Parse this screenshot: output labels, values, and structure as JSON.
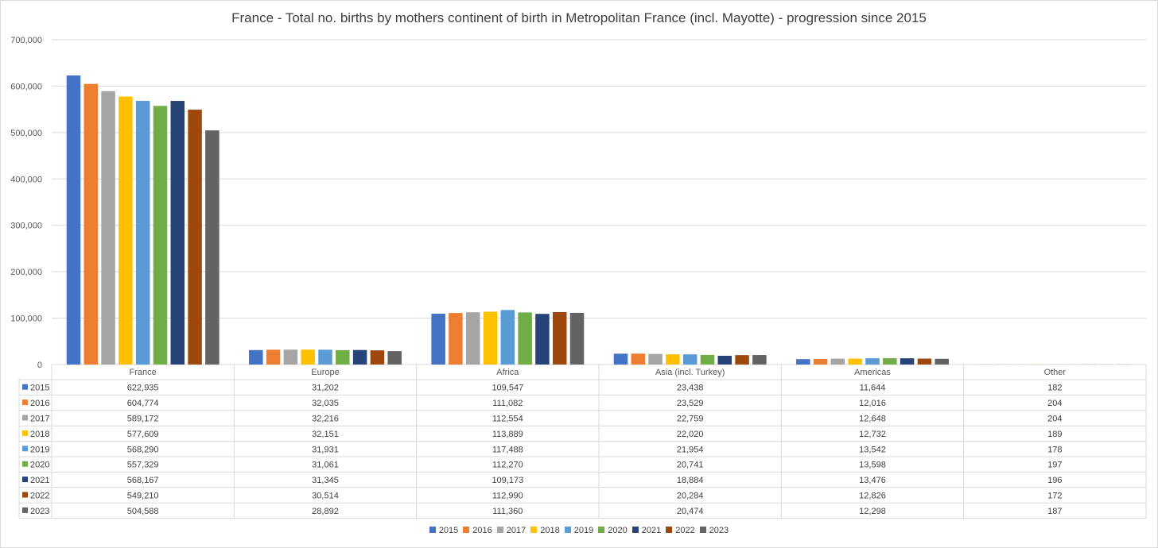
{
  "chart_data": {
    "type": "bar",
    "title": "France - Total no. births by mothers continent of birth in Metropolitan France (incl. Mayotte) - progression since 2015",
    "categories": [
      "France",
      "Europe",
      "Africa",
      "Asia (incl. Turkey)",
      "Americas",
      "Other"
    ],
    "ylim": [
      0,
      700000
    ],
    "yticks": [
      "0",
      "100,000",
      "200,000",
      "300,000",
      "400,000",
      "500,000",
      "600,000",
      "700,000"
    ],
    "grid": true,
    "legend_position": "bottom",
    "series": [
      {
        "name": "2015",
        "color": "#4472c4",
        "values": [
          622935,
          31202,
          109547,
          23438,
          11644,
          182
        ],
        "labels": [
          "622,935",
          "31,202",
          "109,547",
          "23,438",
          "11,644",
          "182"
        ]
      },
      {
        "name": "2016",
        "color": "#ed7d31",
        "values": [
          604774,
          32035,
          111082,
          23529,
          12016,
          204
        ],
        "labels": [
          "604,774",
          "32,035",
          "111,082",
          "23,529",
          "12,016",
          "204"
        ]
      },
      {
        "name": "2017",
        "color": "#a5a5a5",
        "values": [
          589172,
          32216,
          112554,
          22759,
          12648,
          204
        ],
        "labels": [
          "589,172",
          "32,216",
          "112,554",
          "22,759",
          "12,648",
          "204"
        ]
      },
      {
        "name": "2018",
        "color": "#ffc000",
        "values": [
          577609,
          32151,
          113889,
          22020,
          12732,
          189
        ],
        "labels": [
          "577,609",
          "32,151",
          "113,889",
          "22,020",
          "12,732",
          "189"
        ]
      },
      {
        "name": "2019",
        "color": "#5b9bd5",
        "values": [
          568290,
          31931,
          117488,
          21954,
          13542,
          178
        ],
        "labels": [
          "568,290",
          "31,931",
          "117,488",
          "21,954",
          "13,542",
          "178"
        ]
      },
      {
        "name": "2020",
        "color": "#70ad47",
        "values": [
          557329,
          31061,
          112270,
          20741,
          13598,
          197
        ],
        "labels": [
          "557,329",
          "31,061",
          "112,270",
          "20,741",
          "13,598",
          "197"
        ]
      },
      {
        "name": "2021",
        "color": "#264478",
        "values": [
          568167,
          31345,
          109173,
          18884,
          13476,
          196
        ],
        "labels": [
          "568,167",
          "31,345",
          "109,173",
          "18,884",
          "13,476",
          "196"
        ]
      },
      {
        "name": "2022",
        "color": "#9e480e",
        "values": [
          549210,
          30514,
          112990,
          20284,
          12826,
          172
        ],
        "labels": [
          "549,210",
          "30,514",
          "112,990",
          "20,284",
          "12,826",
          "172"
        ]
      },
      {
        "name": "2023",
        "color": "#636363",
        "values": [
          504588,
          28892,
          111360,
          20474,
          12298,
          187
        ],
        "labels": [
          "504,588",
          "28,892",
          "111,360",
          "20,474",
          "12,298",
          "187"
        ]
      }
    ]
  }
}
